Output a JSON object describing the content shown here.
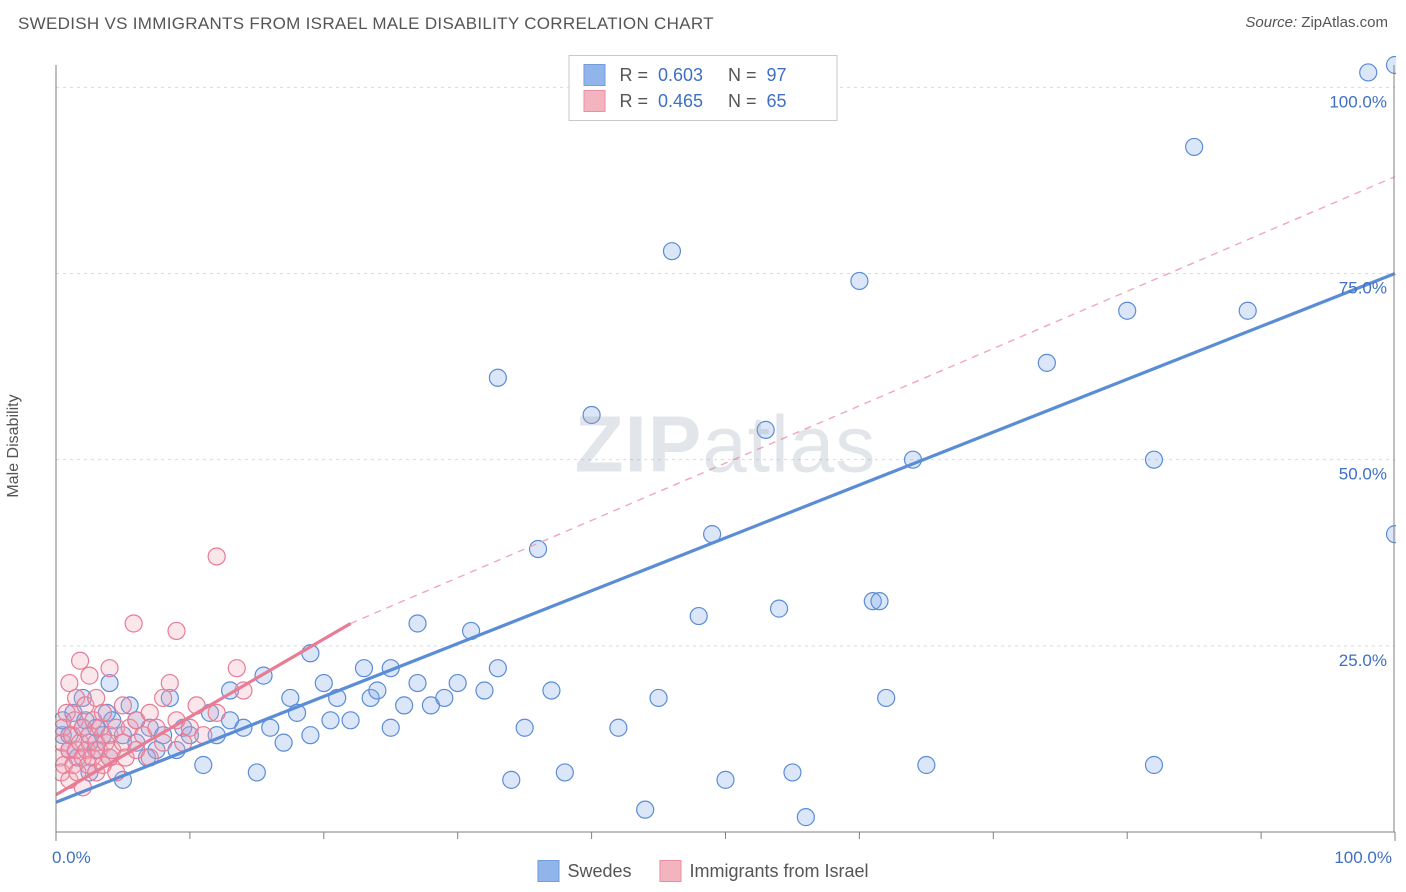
{
  "title": "SWEDISH VS IMMIGRANTS FROM ISRAEL MALE DISABILITY CORRELATION CHART",
  "source_label": "Source:",
  "source_value": "ZipAtlas.com",
  "ylabel": "Male Disability",
  "watermark_heavy": "ZIP",
  "watermark_light": "atlas",
  "chart": {
    "type": "scatter",
    "xlim": [
      0,
      100
    ],
    "ylim": [
      0,
      103
    ],
    "x_ticks_minor": [
      10,
      20,
      30,
      40,
      50,
      60,
      70,
      80,
      90
    ],
    "x_ticks_labeled": [
      0,
      100
    ],
    "y_ticks_labeled": [
      0,
      25,
      50,
      75,
      100
    ],
    "x_tick_labels": [
      "0.0%",
      "100.0%"
    ],
    "y_tick_labels": [
      "0.0%",
      "25.0%",
      "50.0%",
      "75.0%",
      "100.0%"
    ],
    "gridline_color": "#d9d9d9",
    "gridline_dash": "3,4",
    "axis_line_color": "#808080",
    "background_color": "#ffffff",
    "marker_radius": 8.5,
    "marker_stroke_width": 1.2,
    "marker_fill_opacity": 0.28,
    "axis_label_fontsize": 16,
    "tick_fontsize": 17
  },
  "series": [
    {
      "name": "Swedes",
      "fill_color": "#7ea9e8",
      "stroke_color": "#5b8cd6",
      "label_color": "#3f70c4",
      "regression": {
        "x0": 0,
        "y0": 4,
        "x1": 100,
        "y1": 75,
        "stroke_width": 3.2,
        "dash": "none",
        "extrapolate": {
          "x0": 100,
          "y0": 75,
          "x1": 100,
          "y1": 75
        }
      },
      "R": "0.603",
      "N": "97",
      "points": [
        [
          0.5,
          13
        ],
        [
          0.5,
          15
        ],
        [
          1,
          11
        ],
        [
          1,
          13
        ],
        [
          1.3,
          16
        ],
        [
          1.6,
          10
        ],
        [
          2,
          14
        ],
        [
          2,
          18
        ],
        [
          2.2,
          15
        ],
        [
          2.5,
          8
        ],
        [
          2.5,
          12
        ],
        [
          3,
          14
        ],
        [
          3,
          11
        ],
        [
          3.5,
          13
        ],
        [
          3.8,
          16
        ],
        [
          4,
          10
        ],
        [
          4,
          20
        ],
        [
          4.2,
          15
        ],
        [
          5,
          13
        ],
        [
          5,
          7
        ],
        [
          5.5,
          17
        ],
        [
          6,
          12
        ],
        [
          6,
          15
        ],
        [
          6.8,
          10
        ],
        [
          7,
          14
        ],
        [
          7.5,
          11
        ],
        [
          8,
          13
        ],
        [
          8.5,
          18
        ],
        [
          9,
          11
        ],
        [
          9.5,
          14
        ],
        [
          10,
          13
        ],
        [
          11,
          9
        ],
        [
          11.5,
          16
        ],
        [
          12,
          13
        ],
        [
          13,
          15
        ],
        [
          13,
          19
        ],
        [
          14,
          14
        ],
        [
          15,
          8
        ],
        [
          15.5,
          21
        ],
        [
          16,
          14
        ],
        [
          17,
          12
        ],
        [
          17.5,
          18
        ],
        [
          18,
          16
        ],
        [
          19,
          13
        ],
        [
          19,
          24
        ],
        [
          20,
          20
        ],
        [
          20.5,
          15
        ],
        [
          21,
          18
        ],
        [
          22,
          15
        ],
        [
          23,
          22
        ],
        [
          23.5,
          18
        ],
        [
          24,
          19
        ],
        [
          25,
          22
        ],
        [
          25,
          14
        ],
        [
          26,
          17
        ],
        [
          27,
          20
        ],
        [
          27,
          28
        ],
        [
          28,
          17
        ],
        [
          29,
          18
        ],
        [
          30,
          20
        ],
        [
          31,
          27
        ],
        [
          32,
          19
        ],
        [
          33,
          22
        ],
        [
          33,
          61
        ],
        [
          34,
          7
        ],
        [
          35,
          14
        ],
        [
          36,
          38
        ],
        [
          37,
          19
        ],
        [
          38,
          8
        ],
        [
          40,
          56
        ],
        [
          40,
          102
        ],
        [
          42,
          14
        ],
        [
          44,
          3
        ],
        [
          45,
          18
        ],
        [
          46,
          78
        ],
        [
          48,
          29
        ],
        [
          49,
          40
        ],
        [
          50,
          7
        ],
        [
          53,
          54
        ],
        [
          54,
          30
        ],
        [
          55,
          8
        ],
        [
          56,
          2
        ],
        [
          60,
          74
        ],
        [
          61,
          31
        ],
        [
          61.5,
          31
        ],
        [
          62,
          18
        ],
        [
          64,
          50
        ],
        [
          65,
          9
        ],
        [
          74,
          63
        ],
        [
          80,
          70
        ],
        [
          82,
          9
        ],
        [
          82,
          50
        ],
        [
          85,
          92
        ],
        [
          89,
          70
        ],
        [
          98,
          102
        ],
        [
          100,
          40
        ],
        [
          100,
          103
        ]
      ]
    },
    {
      "name": "Immigrants from Israel",
      "fill_color": "#f1a7b6",
      "stroke_color": "#e77c94",
      "label_color": "#e96383",
      "regression": {
        "x0": 0,
        "y0": 5,
        "x1": 22,
        "y1": 28,
        "stroke_width": 3.2,
        "dash": "none",
        "extrapolate": {
          "x0": 22,
          "y0": 28,
          "x1": 100,
          "y1": 88,
          "dash": "7,6",
          "stroke_width": 1.4
        }
      },
      "R": "0.465",
      "N": "65",
      "points": [
        [
          0.3,
          10
        ],
        [
          0.4,
          8
        ],
        [
          0.5,
          12
        ],
        [
          0.5,
          14
        ],
        [
          0.6,
          9
        ],
        [
          0.8,
          16
        ],
        [
          1,
          7
        ],
        [
          1,
          11
        ],
        [
          1,
          20
        ],
        [
          1.2,
          13
        ],
        [
          1.3,
          9
        ],
        [
          1.4,
          15
        ],
        [
          1.5,
          11
        ],
        [
          1.5,
          18
        ],
        [
          1.6,
          8
        ],
        [
          1.8,
          12
        ],
        [
          1.8,
          23
        ],
        [
          2,
          10
        ],
        [
          2,
          14
        ],
        [
          2,
          6
        ],
        [
          2.2,
          17
        ],
        [
          2.3,
          11
        ],
        [
          2.4,
          9
        ],
        [
          2.5,
          13
        ],
        [
          2.5,
          21
        ],
        [
          2.7,
          10
        ],
        [
          2.8,
          15
        ],
        [
          3,
          8
        ],
        [
          3,
          12
        ],
        [
          3,
          18
        ],
        [
          3.2,
          11
        ],
        [
          3.3,
          14
        ],
        [
          3.5,
          9
        ],
        [
          3.5,
          16
        ],
        [
          3.7,
          12
        ],
        [
          4,
          10
        ],
        [
          4,
          13
        ],
        [
          4,
          22
        ],
        [
          4.2,
          11
        ],
        [
          4.5,
          14
        ],
        [
          4.5,
          8
        ],
        [
          5,
          12
        ],
        [
          5,
          17
        ],
        [
          5.2,
          10
        ],
        [
          5.5,
          14
        ],
        [
          5.8,
          28
        ],
        [
          6,
          11
        ],
        [
          6,
          15
        ],
        [
          6.5,
          13
        ],
        [
          7,
          16
        ],
        [
          7,
          10
        ],
        [
          7.5,
          14
        ],
        [
          8,
          12
        ],
        [
          8,
          18
        ],
        [
          8.5,
          20
        ],
        [
          9,
          15
        ],
        [
          9,
          27
        ],
        [
          9.5,
          12
        ],
        [
          10,
          14
        ],
        [
          10.5,
          17
        ],
        [
          11,
          13
        ],
        [
          12,
          16
        ],
        [
          12,
          37
        ],
        [
          13.5,
          22
        ],
        [
          14,
          19
        ]
      ]
    }
  ],
  "stats_box": {
    "R_label": "R =",
    "N_label": "N ="
  },
  "bottom_legend": {
    "items": [
      "Swedes",
      "Immigrants from Israel"
    ]
  }
}
